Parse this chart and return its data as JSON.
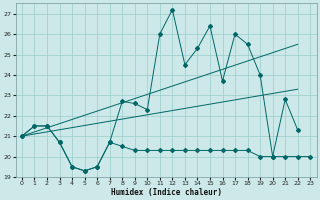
{
  "xlabel": "Humidex (Indice chaleur)",
  "bg_color": "#cce8e8",
  "grid_color": "#99cccc",
  "line_color": "#006666",
  "xlim": [
    -0.5,
    23.5
  ],
  "ylim": [
    19,
    27.5
  ],
  "yticks": [
    19,
    20,
    21,
    22,
    23,
    24,
    25,
    26,
    27
  ],
  "xticks": [
    0,
    1,
    2,
    3,
    4,
    5,
    6,
    7,
    8,
    9,
    10,
    11,
    12,
    13,
    14,
    15,
    16,
    17,
    18,
    19,
    20,
    21,
    22,
    23
  ],
  "series_main_x": [
    0,
    1,
    2,
    3,
    4,
    5,
    6,
    7,
    8,
    9,
    10,
    11,
    12,
    13,
    14,
    15,
    16,
    17,
    18,
    19,
    20,
    21,
    22
  ],
  "series_main_y": [
    21.0,
    21.5,
    21.5,
    20.7,
    19.5,
    19.3,
    19.5,
    20.7,
    22.7,
    22.6,
    22.3,
    26.0,
    27.2,
    24.5,
    25.3,
    26.4,
    23.7,
    26.0,
    25.5,
    24.0,
    20.0,
    22.8,
    21.3
  ],
  "series_lower_x": [
    0,
    1,
    2,
    3,
    4,
    5,
    6,
    7,
    8,
    9,
    10,
    11,
    12,
    13,
    14,
    15,
    16,
    17,
    18,
    19,
    20,
    21,
    22,
    23
  ],
  "series_lower_y": [
    21.0,
    21.5,
    21.5,
    20.7,
    19.5,
    19.3,
    19.5,
    20.7,
    20.5,
    20.3,
    20.3,
    20.3,
    20.3,
    20.3,
    20.3,
    20.3,
    20.3,
    20.3,
    20.3,
    20.0,
    20.0,
    20.0,
    20.0,
    20.0
  ],
  "trend1_x": [
    0,
    22
  ],
  "trend1_y": [
    21.0,
    25.5
  ],
  "trend2_x": [
    0,
    22
  ],
  "trend2_y": [
    21.0,
    23.3
  ]
}
